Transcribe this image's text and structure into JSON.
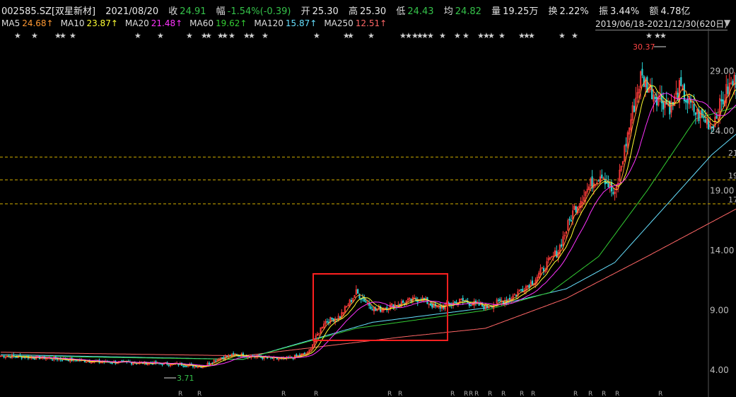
{
  "header": {
    "code": "002585.SZ[双星新材]",
    "date": "2021/08/20",
    "close_label": "收",
    "close": "24.91",
    "change_label": "幅",
    "change": "-1.54%(-0.39)",
    "open_label": "开",
    "open": "25.30",
    "high_label": "高",
    "high": "25.30",
    "low_label": "低",
    "low": "24.43",
    "avg_label": "均",
    "avg": "24.82",
    "vol_label": "量",
    "vol": "19.25万",
    "turnover_label": "换",
    "turnover": "2.22%",
    "amplitude_label": "振",
    "amplitude": "3.44%",
    "amount_label": "额",
    "amount": "4.78亿"
  },
  "ma_legend": [
    {
      "name": "MA5",
      "value": "24.68↑",
      "color": "#ff9933"
    },
    {
      "name": "MA10",
      "value": "23.87↑",
      "color": "#ffff33"
    },
    {
      "name": "MA20",
      "value": "21.48↑",
      "color": "#ff33ff"
    },
    {
      "name": "MA60",
      "value": "19.62↑",
      "color": "#33cc33"
    },
    {
      "name": "MA120",
      "value": "15.87↑",
      "color": "#66e0ff"
    },
    {
      "name": "MA250",
      "value": "12.51↑",
      "color": "#ff6666"
    }
  ],
  "date_range": "2019/06/18-2021/12/30(620日)",
  "range_arrow": "▼",
  "chart_data": {
    "type": "candlestick",
    "y_ticks": [
      "29.00",
      "24.00",
      "19.00",
      "14.00",
      "9.00",
      "4.00"
    ],
    "y_tick_values": [
      29,
      24,
      19,
      14,
      9,
      4
    ],
    "ylim": [
      3.0,
      31.5
    ],
    "bars": 420,
    "dashed_levels": [
      21.8,
      19.9,
      17.9
    ],
    "dashed_level_labels": [
      "21",
      "19",
      "17"
    ],
    "annotations": {
      "high": "30.37",
      "low": "3.71"
    },
    "close_points": [
      [
        0,
        5.2
      ],
      [
        30,
        5.0
      ],
      [
        60,
        4.7
      ],
      [
        90,
        4.6
      ],
      [
        110,
        4.5
      ],
      [
        125,
        4.3
      ],
      [
        135,
        5.0
      ],
      [
        145,
        5.3
      ],
      [
        160,
        5.1
      ],
      [
        175,
        4.9
      ],
      [
        190,
        5.4
      ],
      [
        200,
        8.0
      ],
      [
        210,
        8.5
      ],
      [
        220,
        10.5
      ],
      [
        232,
        9.0
      ],
      [
        245,
        9.5
      ],
      [
        260,
        10.0
      ],
      [
        270,
        9.2
      ],
      [
        285,
        9.8
      ],
      [
        300,
        9.3
      ],
      [
        315,
        10.0
      ],
      [
        330,
        11.5
      ],
      [
        345,
        14.0
      ],
      [
        355,
        17.5
      ],
      [
        365,
        19.5
      ],
      [
        372,
        20.5
      ],
      [
        380,
        18.5
      ],
      [
        390,
        25.0
      ],
      [
        396,
        28.5
      ],
      [
        405,
        27.0
      ],
      [
        415,
        26.0
      ],
      [
        420,
        27.5
      ],
      [
        430,
        25.5
      ],
      [
        440,
        24.5
      ],
      [
        450,
        27.5
      ],
      [
        460,
        29.0
      ],
      [
        468,
        26.0
      ]
    ],
    "ma_series": [
      {
        "name": "MA250",
        "color": "#ff6666",
        "points": [
          [
            0,
            5.5
          ],
          [
            150,
            5.2
          ],
          [
            250,
            6.8
          ],
          [
            300,
            7.5
          ],
          [
            350,
            10.0
          ],
          [
            400,
            13.5
          ],
          [
            468,
            18.4
          ]
        ]
      },
      {
        "name": "MA120",
        "color": "#66e0ff",
        "points": [
          [
            0,
            5.3
          ],
          [
            150,
            4.9
          ],
          [
            230,
            8.0
          ],
          [
            300,
            9.2
          ],
          [
            350,
            10.8
          ],
          [
            380,
            13.0
          ],
          [
            410,
            17.5
          ],
          [
            440,
            22.0
          ],
          [
            468,
            25.2
          ]
        ]
      },
      {
        "name": "MA60",
        "color": "#33cc33",
        "points": [
          [
            0,
            5.2
          ],
          [
            150,
            4.9
          ],
          [
            220,
            7.5
          ],
          [
            300,
            9.0
          ],
          [
            340,
            10.5
          ],
          [
            370,
            13.5
          ],
          [
            400,
            19.0
          ],
          [
            430,
            25.0
          ],
          [
            468,
            26.5
          ]
        ]
      }
    ],
    "stars": [
      20,
      44,
      77,
      84,
      98,
      190,
      222,
      263,
      284,
      290,
      307,
      313,
      323,
      344,
      351,
      370,
      443,
      485,
      491,
      520,
      565,
      573,
      582,
      589,
      596,
      604,
      621,
      642,
      654,
      675,
      683,
      690,
      705,
      733,
      740,
      747,
      790,
      808,
      913,
      925,
      933
    ],
    "r_marks": [
      252,
      279,
      398,
      444,
      548,
      563,
      637,
      656,
      663,
      671,
      690,
      709,
      735,
      751,
      811,
      832,
      851,
      870,
      931
    ]
  }
}
